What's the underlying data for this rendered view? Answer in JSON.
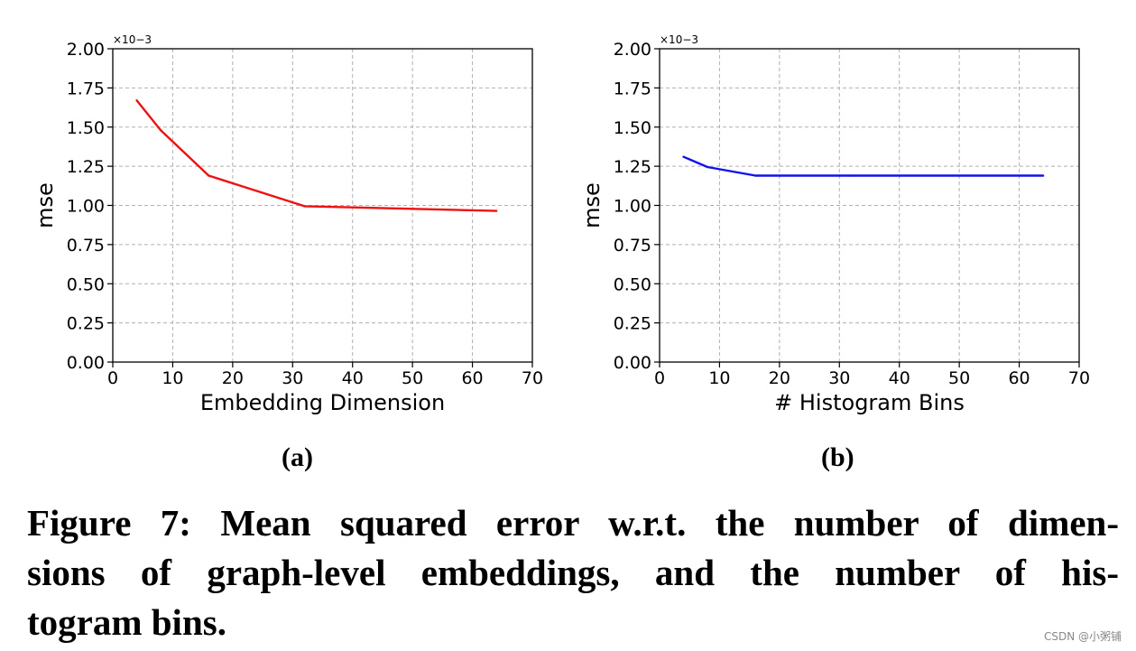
{
  "chart_data": [
    {
      "type": "line",
      "panel_label": "(a)",
      "xlabel": "Embedding Dimension",
      "ylabel": "mse",
      "y_multiplier": "×10−3",
      "xlim": [
        0,
        70
      ],
      "ylim": [
        0,
        2.0
      ],
      "xticks": [
        "0",
        "10",
        "20",
        "30",
        "40",
        "50",
        "60",
        "70"
      ],
      "yticks": [
        "0.00",
        "0.25",
        "0.50",
        "0.75",
        "1.00",
        "1.25",
        "1.50",
        "1.75",
        "2.00"
      ],
      "grid": true,
      "series": [
        {
          "color": "#ee1111",
          "x": [
            4,
            8,
            16,
            32,
            64
          ],
          "y": [
            1.67,
            1.48,
            1.19,
            0.995,
            0.965
          ]
        }
      ]
    },
    {
      "type": "line",
      "panel_label": "(b)",
      "xlabel": "# Histogram Bins",
      "ylabel": "mse",
      "y_multiplier": "×10−3",
      "xlim": [
        0,
        70
      ],
      "ylim": [
        0,
        2.0
      ],
      "xticks": [
        "0",
        "10",
        "20",
        "30",
        "40",
        "50",
        "60",
        "70"
      ],
      "yticks": [
        "0.00",
        "0.25",
        "0.50",
        "0.75",
        "1.00",
        "1.25",
        "1.50",
        "1.75",
        "2.00"
      ],
      "grid": true,
      "series": [
        {
          "color": "#1111ee",
          "x": [
            4,
            8,
            16,
            32,
            64
          ],
          "y": [
            1.31,
            1.245,
            1.19,
            1.19,
            1.19
          ]
        }
      ]
    }
  ],
  "caption": {
    "line1": "Figure 7: Mean squared error w.r.t. the number of dimen-",
    "line2": "sions of graph-level embeddings, and the number of his-",
    "line3": "togram bins."
  },
  "watermark": "CSDN @小粥铺"
}
